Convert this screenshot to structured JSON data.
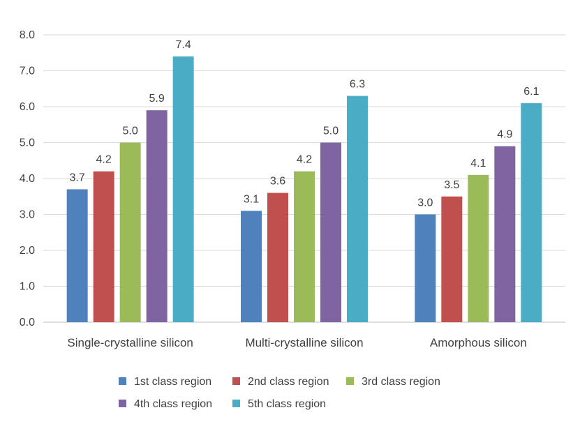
{
  "chart_data": {
    "type": "bar",
    "title": "",
    "xlabel": "",
    "ylabel": "",
    "ylim": [
      0,
      8
    ],
    "ytick_step": 1,
    "yticks": [
      "0.0",
      "1.0",
      "2.0",
      "3.0",
      "4.0",
      "5.0",
      "6.0",
      "7.0",
      "8.0"
    ],
    "grid": true,
    "legend_position": "bottom",
    "categories": [
      "Single-crystalline silicon",
      "Multi-crystalline silicon",
      "Amorphous silicon"
    ],
    "series": [
      {
        "name": "1st class region",
        "color": "#4f81bd",
        "values": [
          3.7,
          3.1,
          3.0
        ],
        "labels": [
          "3.7",
          "3.1",
          "3.0"
        ]
      },
      {
        "name": "2nd class region",
        "color": "#c0504d",
        "values": [
          4.2,
          3.6,
          3.5
        ],
        "labels": [
          "4.2",
          "3.6",
          "3.5"
        ]
      },
      {
        "name": "3rd class region",
        "color": "#9bbb59",
        "values": [
          5.0,
          4.2,
          4.1
        ],
        "labels": [
          "5.0",
          "4.2",
          "4.1"
        ]
      },
      {
        "name": "4th class region",
        "color": "#8064a2",
        "values": [
          5.9,
          5.0,
          4.9
        ],
        "labels": [
          "5.9",
          "5.0",
          "4.9"
        ]
      },
      {
        "name": "5th class region",
        "color": "#4bacc6",
        "values": [
          7.4,
          6.3,
          6.1
        ],
        "labels": [
          "7.4",
          "6.3",
          "6.1"
        ]
      }
    ]
  }
}
